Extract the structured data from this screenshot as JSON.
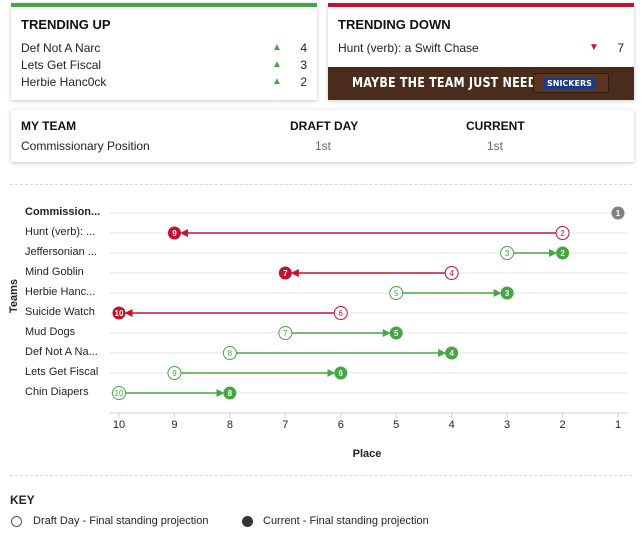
{
  "trending_up": {
    "title": "TRENDING UP",
    "items": [
      {
        "team": "Def Not A Narc",
        "change": "4"
      },
      {
        "team": "Lets Get Fiscal",
        "change": "3"
      },
      {
        "team": "Herbie Hanc0ck",
        "change": "2"
      }
    ],
    "color": "#43a843"
  },
  "trending_down": {
    "title": "TRENDING DOWN",
    "items": [
      {
        "team": "Hunt (verb): a Swift Chase",
        "change": "7"
      }
    ],
    "color": "#c8102e",
    "ad_text": "MAYBE THE TEAM JUST NEEDS A",
    "ad_brand": "SNICKERS"
  },
  "my_team": {
    "title": "MY TEAM",
    "col_draft": "DRAFT DAY",
    "col_current": "CURRENT",
    "team_name": "Commissionary Position",
    "draft_value": "1st",
    "current_value": "1st"
  },
  "chart_data": {
    "type": "scatter",
    "xlabel": "Place",
    "ylabel": "Teams",
    "x_ticks": [
      "10",
      "9",
      "8",
      "7",
      "6",
      "5",
      "4",
      "3",
      "2",
      "1"
    ],
    "xlim": [
      10,
      1
    ],
    "teams": [
      {
        "name": "Commission...",
        "draft": 1,
        "current": 1,
        "trend": "same",
        "bold": true
      },
      {
        "name": "Hunt (verb): ...",
        "draft": 2,
        "current": 9,
        "trend": "down"
      },
      {
        "name": "Jeffersonian ...",
        "draft": 3,
        "current": 2,
        "trend": "up"
      },
      {
        "name": "Mind Goblin",
        "draft": 4,
        "current": 7,
        "trend": "down"
      },
      {
        "name": "Herbie Hanc...",
        "draft": 5,
        "current": 3,
        "trend": "up"
      },
      {
        "name": "Suicide Watch",
        "draft": 6,
        "current": 10,
        "trend": "down"
      },
      {
        "name": "Mud Dogs",
        "draft": 7,
        "current": 5,
        "trend": "up"
      },
      {
        "name": "Def Not A Na...",
        "draft": 8,
        "current": 4,
        "trend": "up"
      },
      {
        "name": "Lets Get Fiscal",
        "draft": 9,
        "current": 6,
        "trend": "up"
      },
      {
        "name": "Chin Diapers",
        "draft": 10,
        "current": 8,
        "trend": "up"
      }
    ],
    "colors": {
      "up": "#43a843",
      "down": "#c8102e",
      "same": "#808080"
    }
  },
  "key": {
    "title": "KEY",
    "draft_label": "Draft Day - Final standing projection",
    "current_label": "Current - Final standing projection",
    "draft_symbol": "#",
    "current_symbol": "#"
  }
}
